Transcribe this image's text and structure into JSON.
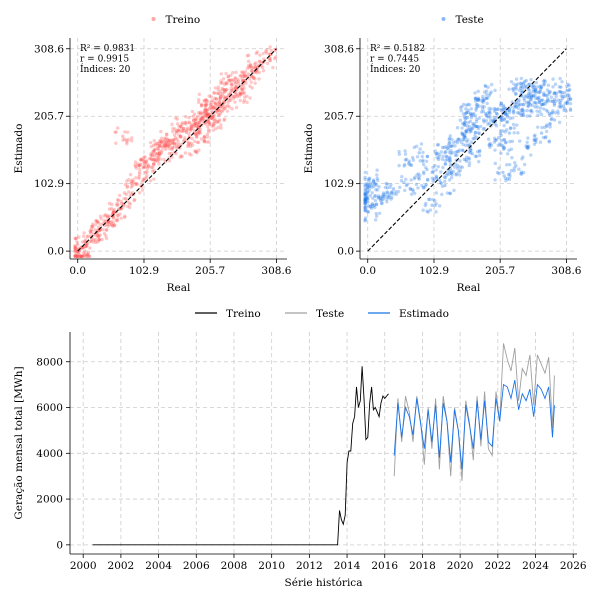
{
  "colors": {
    "train": "#ff4d4d",
    "test": "#1a73e8",
    "train_line": "#000000",
    "test_line": "#a0a0a0",
    "est_line": "#1a73e8",
    "diagonal": "#000000"
  },
  "chart_data": [
    {
      "type": "scatter",
      "panel": "train",
      "legend": "Treino",
      "xlabel": "Real",
      "ylabel": "Estimado",
      "xticks": [
        "0.0",
        "102.9",
        "205.7",
        "308.6"
      ],
      "yticks": [
        "0.0",
        "102.9",
        "205.7",
        "308.6"
      ],
      "xlim": [
        -12,
        325
      ],
      "ylim": [
        -12,
        325
      ],
      "grid": true,
      "legend_position": "top-center",
      "annotations": [
        "R² = 0.9831",
        "r = 0.9915",
        "Índices: 20"
      ],
      "reference_line": "y = x",
      "points": [
        [
          2,
          -5
        ],
        [
          3,
          2
        ],
        [
          5,
          -8
        ],
        [
          8,
          6
        ],
        [
          15,
          12
        ],
        [
          22,
          18
        ],
        [
          30,
          28
        ],
        [
          35,
          32
        ],
        [
          40,
          42
        ],
        [
          48,
          45
        ],
        [
          55,
          52
        ],
        [
          60,
          60
        ],
        [
          68,
          65
        ],
        [
          75,
          80
        ],
        [
          90,
          102
        ],
        [
          105,
          120
        ],
        [
          115,
          140
        ],
        [
          120,
          155
        ],
        [
          130,
          150
        ],
        [
          140,
          160
        ],
        [
          150,
          170
        ],
        [
          160,
          175
        ],
        [
          170,
          185
        ],
        [
          180,
          190
        ],
        [
          190,
          200
        ],
        [
          200,
          210
        ],
        [
          210,
          220
        ],
        [
          220,
          225
        ],
        [
          230,
          235
        ],
        [
          240,
          245
        ],
        [
          250,
          255
        ],
        [
          260,
          260
        ],
        [
          270,
          275
        ],
        [
          175,
          160
        ],
        [
          185,
          175
        ],
        [
          195,
          205
        ],
        [
          205,
          195
        ],
        [
          215,
          215
        ],
        [
          225,
          240
        ],
        [
          235,
          230
        ],
        [
          245,
          250
        ],
        [
          160,
          190
        ],
        [
          150,
          150
        ],
        [
          140,
          170
        ],
        [
          130,
          165
        ],
        [
          200,
          230
        ],
        [
          210,
          205
        ],
        [
          220,
          200
        ],
        [
          190,
          180
        ],
        [
          180,
          200
        ],
        [
          70,
          175
        ],
        [
          85,
          100
        ],
        [
          95,
          130
        ],
        [
          110,
          130
        ],
        [
          235,
          260
        ],
        [
          255,
          240
        ],
        [
          265,
          270
        ],
        [
          275,
          285
        ],
        [
          290,
          290
        ],
        [
          300,
          300
        ]
      ],
      "n_points_note": "dense cloud along y=x; representative points"
    },
    {
      "type": "scatter",
      "panel": "test",
      "legend": "Teste",
      "xlabel": "Real",
      "ylabel": "Estimado",
      "xticks": [
        "0.0",
        "102.9",
        "205.7",
        "308.6"
      ],
      "yticks": [
        "0.0",
        "102.9",
        "205.7",
        "308.6"
      ],
      "xlim": [
        -12,
        325
      ],
      "ylim": [
        -12,
        325
      ],
      "grid": true,
      "legend_position": "top-center",
      "annotations": [
        "R² = 0.5182",
        "r = 0.7445",
        "Índices: 20"
      ],
      "reference_line": "y = x",
      "points": [
        [
          0,
          60
        ],
        [
          0,
          75
        ],
        [
          0,
          90
        ],
        [
          0,
          100
        ],
        [
          2,
          110
        ],
        [
          10,
          70
        ],
        [
          20,
          80
        ],
        [
          30,
          90
        ],
        [
          40,
          95
        ],
        [
          60,
          100
        ],
        [
          80,
          110
        ],
        [
          100,
          120
        ],
        [
          110,
          140
        ],
        [
          120,
          150
        ],
        [
          130,
          160
        ],
        [
          140,
          170
        ],
        [
          150,
          175
        ],
        [
          160,
          185
        ],
        [
          170,
          190
        ],
        [
          180,
          200
        ],
        [
          190,
          205
        ],
        [
          200,
          210
        ],
        [
          210,
          210
        ],
        [
          220,
          215
        ],
        [
          230,
          220
        ],
        [
          240,
          215
        ],
        [
          250,
          225
        ],
        [
          260,
          220
        ],
        [
          270,
          230
        ],
        [
          280,
          230
        ],
        [
          290,
          225
        ],
        [
          300,
          230
        ],
        [
          310,
          225
        ],
        [
          200,
          170
        ],
        [
          210,
          160
        ],
        [
          220,
          180
        ],
        [
          230,
          250
        ],
        [
          240,
          250
        ],
        [
          250,
          240
        ],
        [
          260,
          245
        ],
        [
          270,
          250
        ],
        [
          190,
          240
        ],
        [
          180,
          230
        ],
        [
          170,
          220
        ],
        [
          160,
          150
        ],
        [
          150,
          140
        ],
        [
          140,
          130
        ],
        [
          130,
          120
        ],
        [
          150,
          205
        ],
        [
          160,
          210
        ],
        [
          120,
          100
        ],
        [
          100,
          70
        ],
        [
          80,
          150
        ],
        [
          60,
          140
        ],
        [
          210,
          120
        ],
        [
          230,
          130
        ],
        [
          250,
          160
        ],
        [
          270,
          180
        ],
        [
          290,
          200
        ],
        [
          300,
          250
        ]
      ],
      "n_points_note": "dense cloud; representative points"
    },
    {
      "type": "line",
      "panel": "series",
      "xlabel": "Série histórica",
      "ylabel": "Geração mensal total [MWh]",
      "xticks": [
        "2000",
        "2002",
        "2004",
        "2006",
        "2008",
        "2010",
        "2012",
        "2014",
        "2016",
        "2018",
        "2020",
        "2022",
        "2024",
        "2026"
      ],
      "yticks": [
        "0",
        "2000",
        "4000",
        "6000",
        "8000"
      ],
      "xlim": [
        1999.3,
        2026.2
      ],
      "ylim": [
        -400,
        9300
      ],
      "grid": true,
      "legend_position": "top-center",
      "series": [
        {
          "name": "Treino",
          "x": [
            2000.5,
            2013.5,
            2013.6,
            2013.7,
            2013.8,
            2013.9,
            2014.0,
            2014.1,
            2014.2,
            2014.3,
            2014.4,
            2014.5,
            2014.6,
            2014.7,
            2014.8,
            2014.9,
            2015.0,
            2015.1,
            2015.2,
            2015.3,
            2015.4,
            2015.5,
            2015.6,
            2015.7,
            2015.8,
            2015.9,
            2016.0,
            2016.1,
            2016.2
          ],
          "values": [
            0,
            0,
            1500,
            1100,
            900,
            1300,
            3600,
            4100,
            4100,
            5300,
            5600,
            6900,
            6000,
            6300,
            7800,
            6400,
            4600,
            4700,
            6200,
            6900,
            5900,
            6000,
            5800,
            5600,
            6200,
            6500,
            6400,
            6500,
            6600
          ]
        },
        {
          "name": "Teste",
          "x": [
            2016.5,
            2016.7,
            2016.9,
            2017.1,
            2017.3,
            2017.5,
            2017.7,
            2017.9,
            2018.1,
            2018.3,
            2018.5,
            2018.7,
            2018.9,
            2019.1,
            2019.3,
            2019.5,
            2019.7,
            2019.9,
            2020.1,
            2020.3,
            2020.5,
            2020.7,
            2020.9,
            2021.1,
            2021.3,
            2021.5,
            2021.7,
            2021.9,
            2022.1,
            2022.3,
            2022.5,
            2022.7,
            2022.9,
            2023.1,
            2023.3,
            2023.5,
            2023.7,
            2023.9,
            2024.1,
            2024.3,
            2024.5,
            2024.7,
            2024.9,
            2025.0
          ],
          "values": [
            3000,
            6400,
            4500,
            6500,
            5800,
            4500,
            6500,
            5400,
            3500,
            6000,
            4200,
            6400,
            3300,
            6500,
            5400,
            3000,
            6000,
            5000,
            2800,
            6300,
            5300,
            3700,
            6500,
            4300,
            6700,
            4200,
            3900,
            6700,
            5400,
            8800,
            8100,
            7600,
            8600,
            6300,
            7700,
            7400,
            8300,
            6100,
            8300,
            7900,
            7500,
            8200,
            5100,
            7400
          ]
        },
        {
          "name": "Estimado",
          "x": [
            2016.5,
            2016.7,
            2016.9,
            2017.1,
            2017.3,
            2017.5,
            2017.7,
            2017.9,
            2018.1,
            2018.3,
            2018.5,
            2018.7,
            2018.9,
            2019.1,
            2019.3,
            2019.5,
            2019.7,
            2019.9,
            2020.1,
            2020.3,
            2020.5,
            2020.7,
            2020.9,
            2021.1,
            2021.3,
            2021.5,
            2021.7,
            2021.9,
            2022.1,
            2022.3,
            2022.5,
            2022.7,
            2022.9,
            2023.1,
            2023.3,
            2023.5,
            2023.7,
            2023.9,
            2024.1,
            2024.3,
            2024.5,
            2024.7,
            2024.9,
            2025.0
          ],
          "values": [
            3900,
            6200,
            4700,
            6000,
            5600,
            4800,
            6400,
            5300,
            4200,
            5900,
            4500,
            6100,
            3800,
            6200,
            5400,
            3600,
            5900,
            5000,
            3300,
            6100,
            5200,
            4200,
            6300,
            4600,
            6300,
            4500,
            4300,
            6400,
            5400,
            7000,
            6900,
            6400,
            7200,
            5900,
            6600,
            6300,
            6800,
            5600,
            7000,
            6800,
            6400,
            6900,
            4700,
            6100
          ]
        }
      ]
    }
  ]
}
